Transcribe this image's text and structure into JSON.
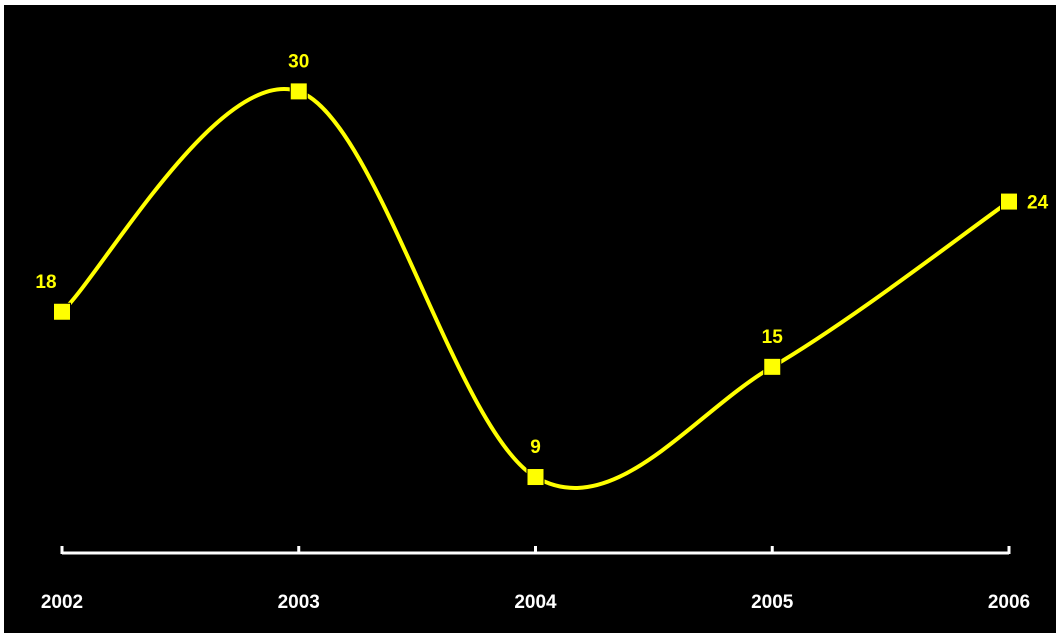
{
  "chart_data": {
    "type": "line",
    "smooth": true,
    "categories": [
      "2002",
      "2003",
      "2004",
      "2005",
      "2006"
    ],
    "series": [
      {
        "values": [
          18,
          30,
          9,
          15,
          24
        ],
        "data_labels": [
          "18",
          "30",
          "9",
          "15",
          "24"
        ],
        "color": "#ffff00",
        "marker": "square"
      }
    ],
    "title": "",
    "xlabel": "",
    "ylabel": "",
    "ylim": [
      0,
      33
    ],
    "grid": false,
    "legend": "none",
    "background": "#000000",
    "axis_color": "#ffffff",
    "tick_label_color": "#ffffff",
    "data_label_color": "#ffff00"
  }
}
